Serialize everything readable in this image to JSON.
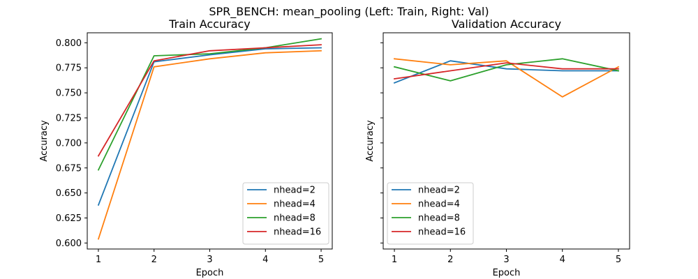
{
  "suptitle": "SPR_BENCH: mean_pooling (Left: Train, Right: Val)",
  "chart_data": [
    {
      "type": "line",
      "title": "Train Accuracy",
      "xlabel": "Epoch",
      "ylabel": "Accuracy",
      "x": [
        1,
        2,
        3,
        4,
        5
      ],
      "xticks": [
        "1",
        "2",
        "3",
        "4",
        "5"
      ],
      "xlim": [
        0.8,
        5.2
      ],
      "ylim": [
        0.594,
        0.81
      ],
      "yticks": [
        "0.600",
        "0.625",
        "0.650",
        "0.675",
        "0.700",
        "0.725",
        "0.750",
        "0.775",
        "0.800"
      ],
      "show_ytick_labels": true,
      "legend_position": "lower right",
      "series": [
        {
          "name": "nhead=2",
          "color": "#1f77b4",
          "values": [
            0.638,
            0.781,
            0.788,
            0.794,
            0.795
          ]
        },
        {
          "name": "nhead=4",
          "color": "#ff7f0e",
          "values": [
            0.604,
            0.776,
            0.784,
            0.79,
            0.792
          ]
        },
        {
          "name": "nhead=8",
          "color": "#2ca02c",
          "values": [
            0.673,
            0.787,
            0.789,
            0.795,
            0.804
          ]
        },
        {
          "name": "nhead=16",
          "color": "#d62728",
          "values": [
            0.687,
            0.782,
            0.792,
            0.795,
            0.798
          ]
        }
      ]
    },
    {
      "type": "line",
      "title": "Validation Accuracy",
      "xlabel": "Epoch",
      "ylabel": "Accuracy",
      "x": [
        1,
        2,
        3,
        4,
        5
      ],
      "xticks": [
        "1",
        "2",
        "3",
        "4",
        "5"
      ],
      "xlim": [
        0.8,
        5.2
      ],
      "ylim": [
        0.594,
        0.81
      ],
      "yticks": [
        "0.600",
        "0.625",
        "0.650",
        "0.675",
        "0.700",
        "0.725",
        "0.750",
        "0.775",
        "0.800"
      ],
      "show_ytick_labels": false,
      "legend_position": "lower left",
      "series": [
        {
          "name": "nhead=2",
          "color": "#1f77b4",
          "values": [
            0.76,
            0.782,
            0.774,
            0.772,
            0.772
          ]
        },
        {
          "name": "nhead=4",
          "color": "#ff7f0e",
          "values": [
            0.784,
            0.778,
            0.782,
            0.746,
            0.776
          ]
        },
        {
          "name": "nhead=8",
          "color": "#2ca02c",
          "values": [
            0.776,
            0.762,
            0.778,
            0.784,
            0.772
          ]
        },
        {
          "name": "nhead=16",
          "color": "#d62728",
          "values": [
            0.764,
            0.772,
            0.78,
            0.774,
            0.774
          ]
        }
      ]
    }
  ]
}
